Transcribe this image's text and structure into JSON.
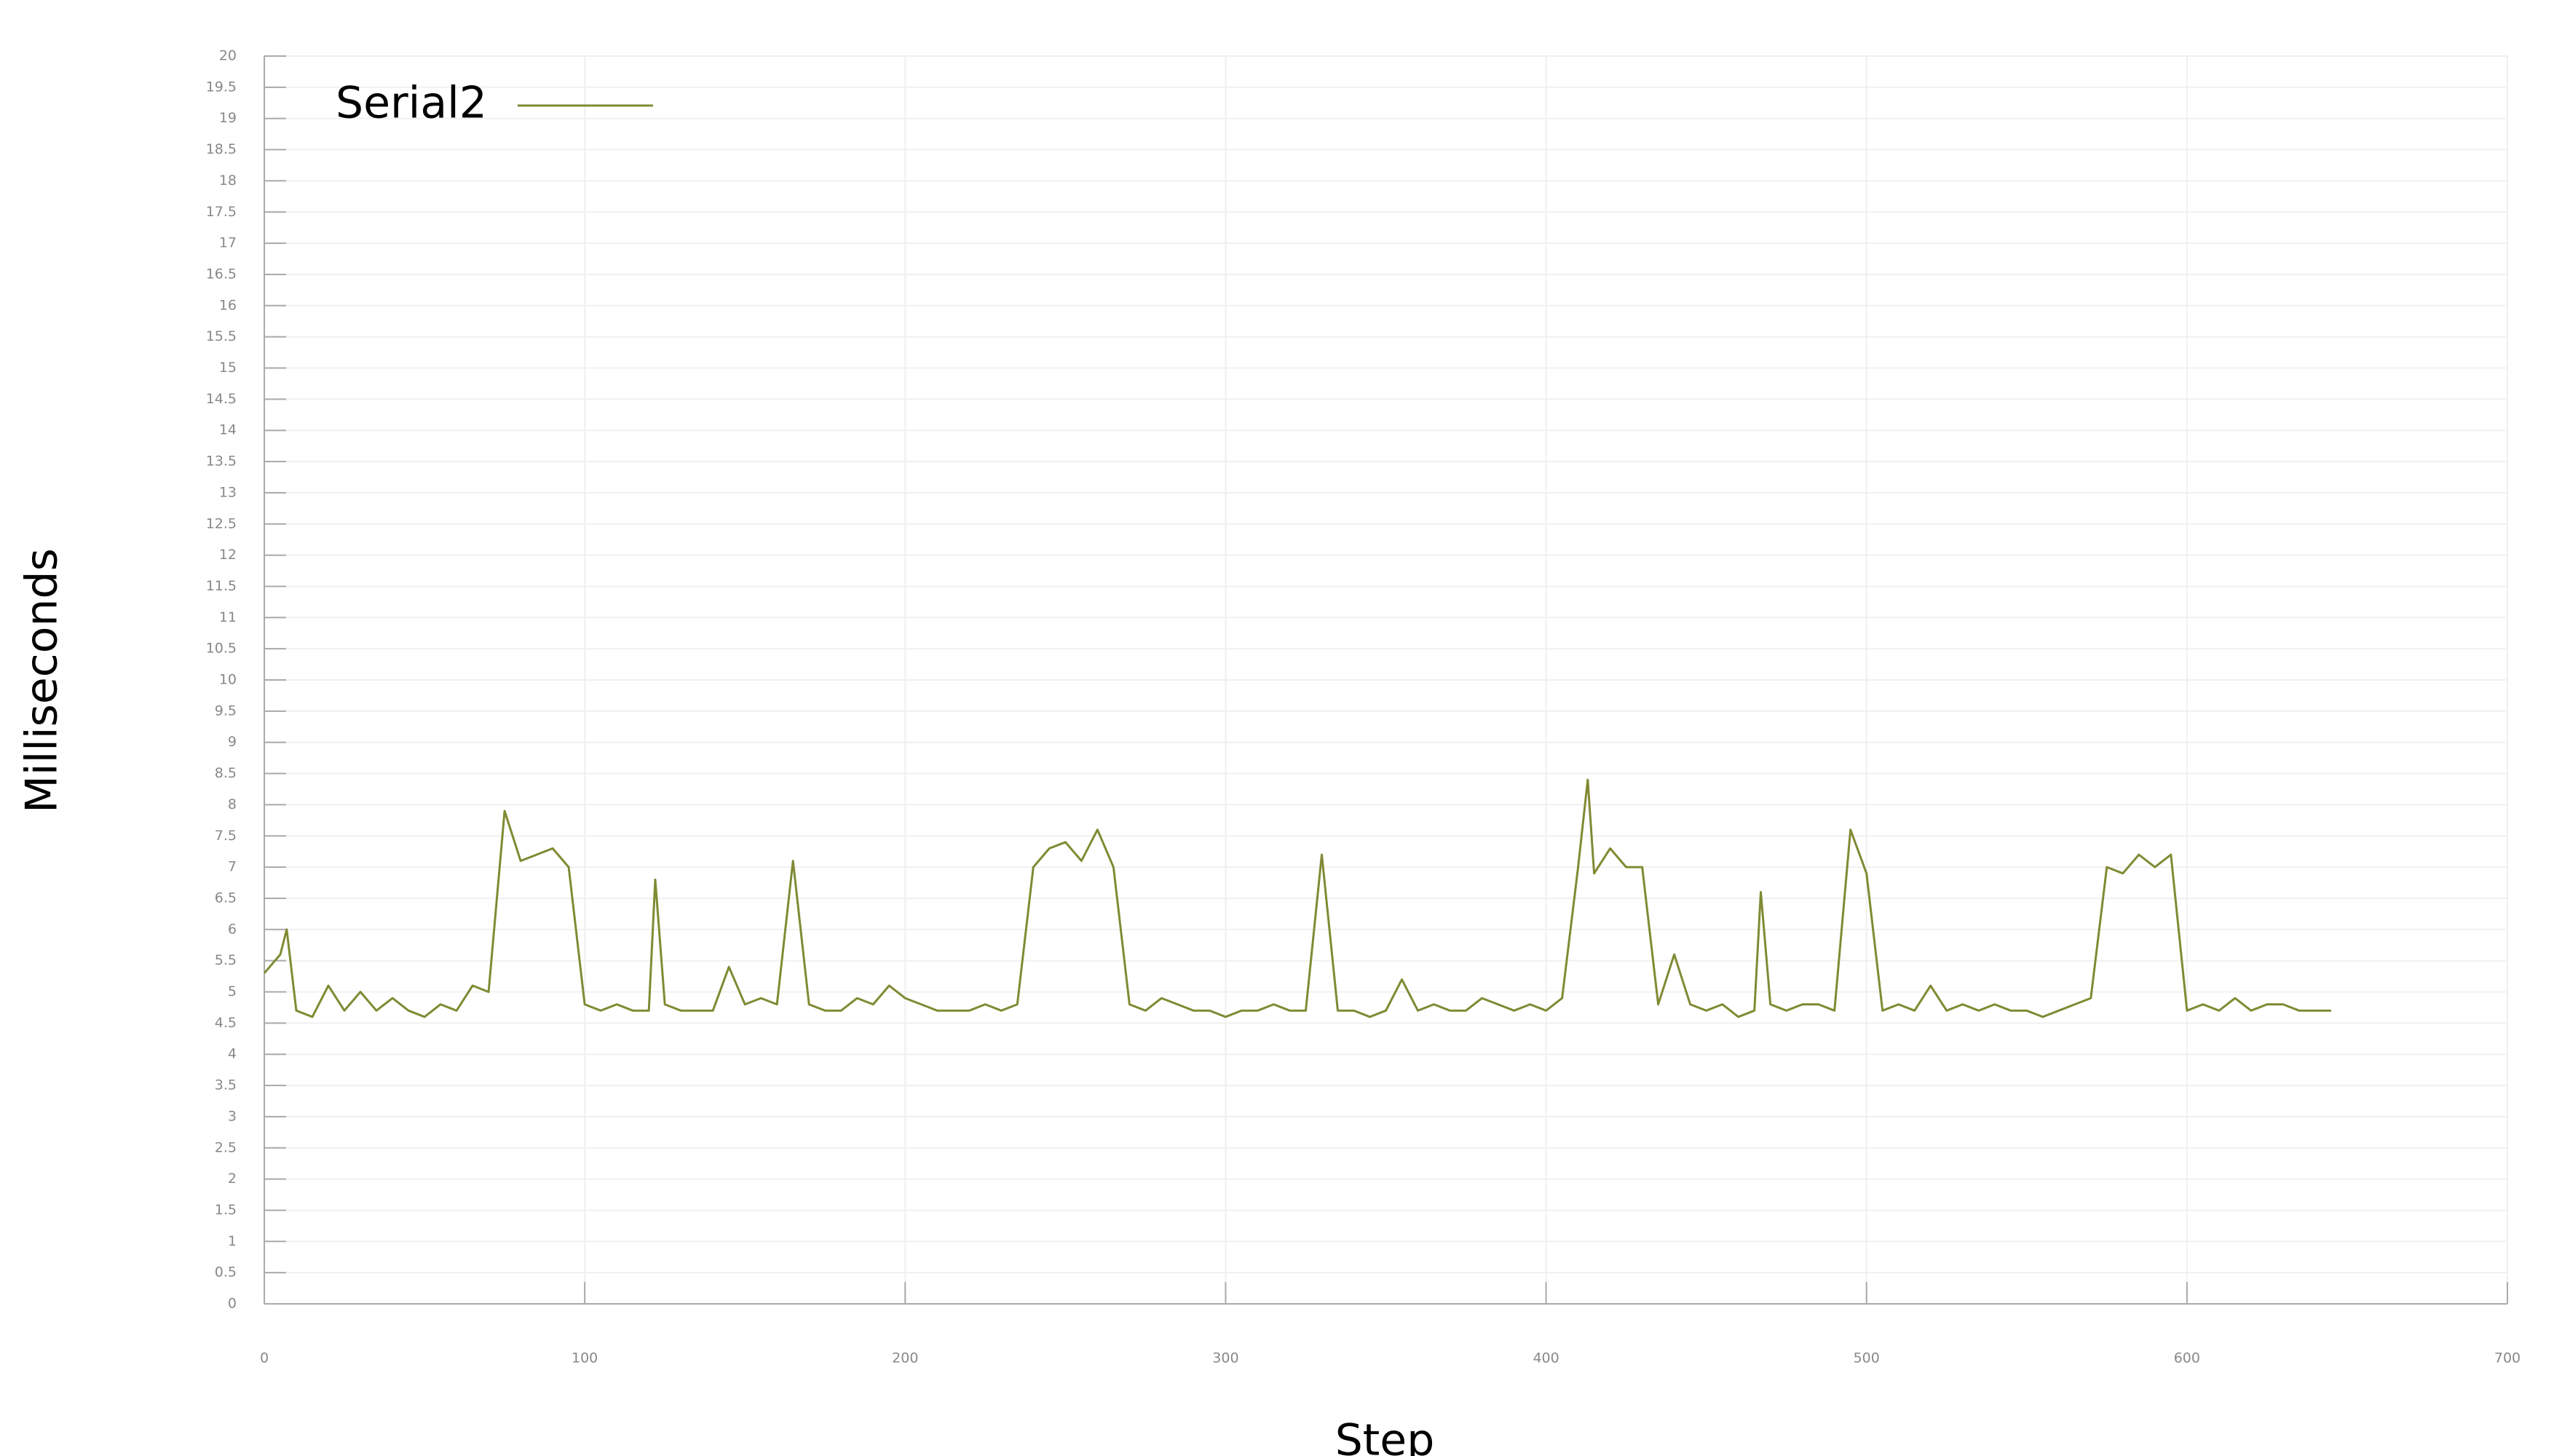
{
  "chart_data": {
    "type": "line",
    "x_label": "Step",
    "y_label": "Milliseconds",
    "xlim": [
      0,
      700
    ],
    "xticks": [
      0,
      100,
      200,
      300,
      400,
      500,
      600,
      700
    ],
    "ylim": [
      0,
      20
    ],
    "yticks": [
      0,
      0.5,
      1,
      1.5,
      2,
      2.5,
      3,
      3.5,
      4,
      4.5,
      5,
      5.5,
      6,
      6.5,
      7,
      7.5,
      8,
      8.5,
      9,
      9.5,
      10,
      10.5,
      11,
      11.5,
      12,
      12.5,
      13,
      13.5,
      14,
      14.5,
      15,
      15.5,
      16,
      16.5,
      17,
      17.5,
      18,
      18.5,
      19,
      19.5,
      20
    ],
    "grid": true,
    "legend": "upper left",
    "x": [
      0,
      5,
      7,
      10,
      15,
      20,
      25,
      30,
      35,
      40,
      45,
      50,
      55,
      60,
      65,
      70,
      75,
      80,
      85,
      90,
      95,
      100,
      105,
      110,
      115,
      120,
      122,
      125,
      130,
      135,
      140,
      145,
      150,
      155,
      160,
      165,
      170,
      175,
      180,
      185,
      190,
      195,
      200,
      205,
      210,
      215,
      220,
      225,
      230,
      235,
      240,
      245,
      250,
      255,
      260,
      265,
      270,
      275,
      280,
      285,
      290,
      295,
      300,
      305,
      310,
      315,
      320,
      325,
      330,
      335,
      340,
      345,
      350,
      355,
      360,
      365,
      370,
      375,
      380,
      385,
      390,
      395,
      400,
      405,
      410,
      413,
      415,
      420,
      425,
      430,
      435,
      440,
      445,
      450,
      455,
      460,
      465,
      467,
      470,
      475,
      480,
      485,
      490,
      495,
      500,
      505,
      510,
      515,
      520,
      525,
      530,
      535,
      540,
      545,
      550,
      555,
      560,
      565,
      570,
      575,
      580,
      585,
      590,
      595,
      600,
      605,
      610,
      615,
      620,
      625,
      630,
      635,
      640,
      645
    ],
    "series": [
      {
        "name": "Serial2",
        "color": "#808a33",
        "values": [
          5.3,
          5.6,
          6.0,
          4.7,
          4.6,
          5.1,
          4.7,
          5.0,
          4.7,
          4.9,
          4.7,
          4.6,
          4.8,
          4.7,
          5.1,
          5.0,
          7.9,
          7.1,
          7.2,
          7.3,
          7.0,
          4.8,
          4.7,
          4.8,
          4.7,
          4.7,
          6.8,
          4.8,
          4.7,
          4.7,
          4.7,
          5.4,
          4.8,
          4.9,
          4.8,
          7.1,
          4.8,
          4.7,
          4.7,
          4.9,
          4.8,
          5.1,
          4.9,
          4.8,
          4.7,
          4.7,
          4.7,
          4.8,
          4.7,
          4.8,
          7.0,
          7.3,
          7.4,
          7.1,
          7.6,
          7.0,
          4.8,
          4.7,
          4.9,
          4.8,
          4.7,
          4.7,
          4.6,
          4.7,
          4.7,
          4.8,
          4.7,
          4.7,
          7.2,
          4.7,
          4.7,
          4.6,
          4.7,
          5.2,
          4.7,
          4.8,
          4.7,
          4.7,
          4.9,
          4.8,
          4.7,
          4.8,
          4.7,
          4.9,
          7.0,
          8.4,
          6.9,
          7.3,
          7.0,
          7.0,
          4.8,
          5.6,
          4.8,
          4.7,
          4.8,
          4.6,
          4.7,
          6.6,
          4.8,
          4.7,
          4.8,
          4.8,
          4.7,
          7.6,
          6.9,
          4.7,
          4.8,
          4.7,
          5.1,
          4.7,
          4.8,
          4.7,
          4.8,
          4.7,
          4.7,
          4.6,
          4.7,
          4.8,
          4.9,
          7.0,
          6.9,
          7.2,
          7.0,
          7.2,
          4.7,
          4.8,
          4.7,
          4.9,
          4.7,
          4.8,
          4.8,
          4.7,
          4.7,
          4.7
        ]
      }
    ]
  }
}
